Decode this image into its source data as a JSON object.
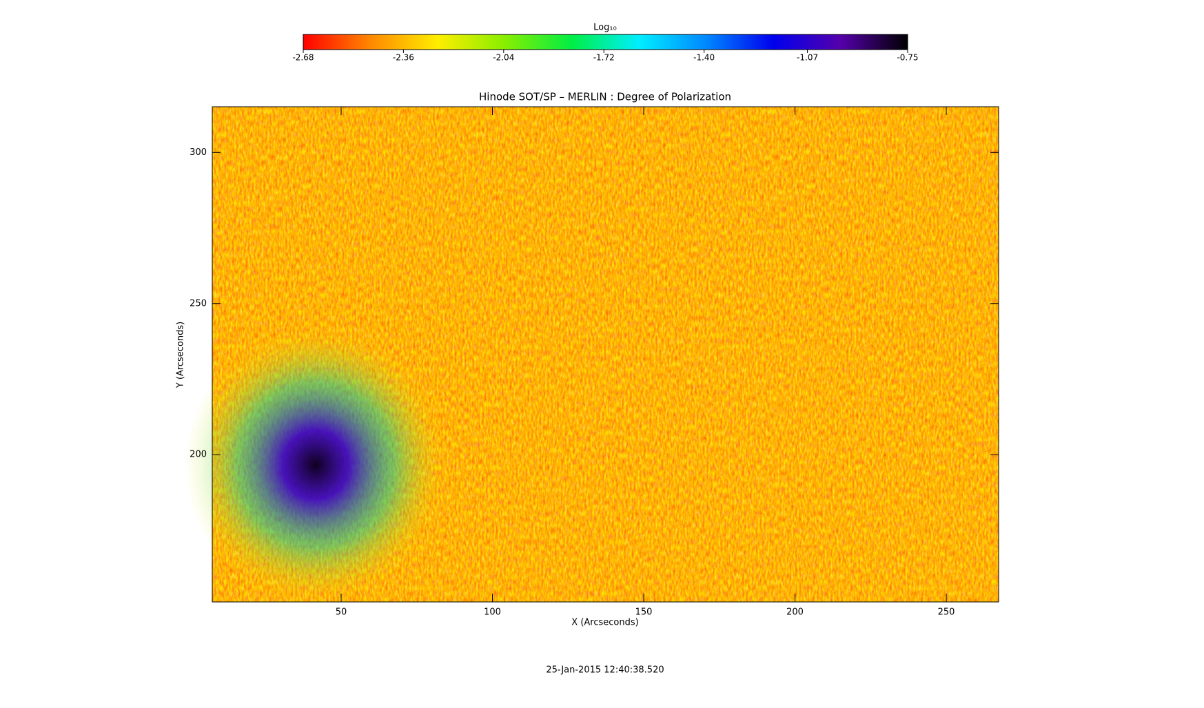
{
  "chart_data": {
    "type": "heatmap",
    "title": "Hinode SOT/SP – MERLIN : Degree of Polarization",
    "x_label": "X (Arcseconds)",
    "y_label": "Y (Arcseconds)",
    "xlim": [
      7.4,
      267.3
    ],
    "ylim": [
      151.3,
      315.1
    ],
    "xticks": [
      50,
      100,
      150,
      200,
      250
    ],
    "yticks": [
      200,
      250,
      300
    ],
    "annotation": "25-Jan-2015 12:40:38.520",
    "colorbar": {
      "label": "Log₁₀",
      "lim": [
        -2.68,
        -0.75
      ],
      "ticks": [
        -2.68,
        -2.36,
        -2.04,
        -1.72,
        {
          "value": -1.4,
          "label": "-1.40"
        },
        -1.07,
        -0.75
      ],
      "colors": [
        "#ff0000",
        "#ff8800",
        "#ffee00",
        "#88ee00",
        "#00ee44",
        "#00eeff",
        "#0088ff",
        "#0000ee",
        "#5500aa",
        "#000000"
      ]
    }
  }
}
